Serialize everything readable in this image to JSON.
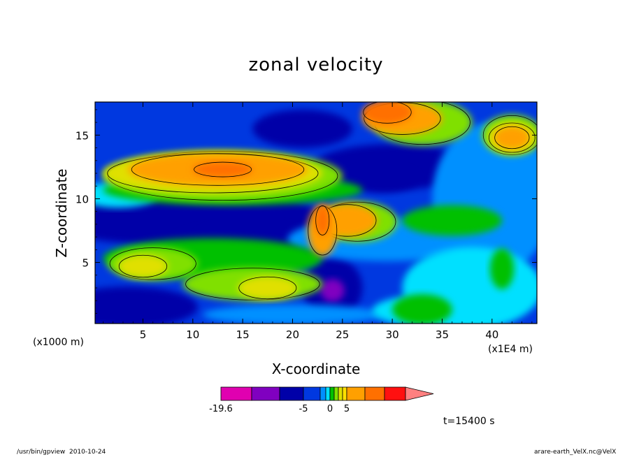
{
  "chart_data": {
    "type": "heatmap",
    "title": "zonal velocity",
    "xlabel": "X-coordinate",
    "ylabel": "Z-coordinate",
    "x_unit_label": "(x1E4 m)",
    "y_unit_label": "(x1000 m)",
    "xlim": [
      0.2,
      44.5
    ],
    "ylim": [
      0.2,
      17.6
    ],
    "x_ticks": [
      5,
      10,
      15,
      20,
      25,
      30,
      35,
      40
    ],
    "y_ticks": [
      5,
      10,
      15
    ],
    "time_label": "t=15400 s",
    "colorbar": {
      "colors": [
        "#e000b0",
        "#8000c0",
        "#0000a8",
        "#0038e0",
        "#0090ff",
        "#00e0ff",
        "#00c000",
        "#80e000",
        "#e0e000",
        "#ffe000",
        "#ffa000",
        "#ff7000",
        "#ff1010",
        "#ff8080"
      ],
      "tick_labels": [
        "-19.6",
        "-5",
        "0",
        "5"
      ],
      "tick_values": [
        -19.6,
        -5,
        0,
        5
      ]
    },
    "regions": [
      {
        "band": 2,
        "x": 3.5,
        "z": 1.5,
        "rx": 7,
        "rz": 1.6
      },
      {
        "band": 2,
        "x": 9,
        "z": 8.5,
        "rx": 14,
        "rz": 2.2
      },
      {
        "band": 2,
        "x": 16,
        "z": 6.5,
        "rx": 8,
        "rz": 1.5
      },
      {
        "band": 2,
        "x": 30,
        "z": 12.5,
        "rx": 8,
        "rz": 1.8
      },
      {
        "band": 2,
        "x": 21,
        "z": 15.5,
        "rx": 5,
        "rz": 1.5
      },
      {
        "band": 1,
        "x": 15.5,
        "z": 7,
        "rx": 5,
        "rz": 1.0
      },
      {
        "band": 1,
        "x": 24,
        "z": 3,
        "rx": 3,
        "rz": 2.4
      },
      {
        "band": 1,
        "x": 29,
        "z": 11.5,
        "rx": 3.5,
        "rz": 1.0
      },
      {
        "band": 0,
        "x": 24,
        "z": 2.8,
        "rx": 1.2,
        "rz": 0.9
      },
      {
        "band": 3,
        "x": 29.5,
        "z": 6.8,
        "rx": 10,
        "rz": 1.7
      },
      {
        "band": 3,
        "x": 40,
        "z": 10,
        "rx": 6,
        "rz": 6
      },
      {
        "band": 3,
        "x": 20,
        "z": 0.9,
        "rx": 9,
        "rz": 0.8
      },
      {
        "band": 4,
        "x": 38,
        "z": 3.0,
        "rx": 7,
        "rz": 3.2
      },
      {
        "band": 4,
        "x": 2.5,
        "z": 10.3,
        "rx": 4,
        "rz": 1.0
      },
      {
        "band": 4,
        "x": 33,
        "z": 1.2,
        "rx": 5,
        "rz": 1.2
      },
      {
        "band": 5,
        "x": 33,
        "z": 1.3,
        "rx": 3,
        "rz": 1.2
      },
      {
        "band": 5,
        "x": 41,
        "z": 4.5,
        "rx": 1.2,
        "rz": 1.6
      },
      {
        "band": 5,
        "x": 12,
        "z": 5.3,
        "rx": 11,
        "rz": 1.6
      },
      {
        "band": 5,
        "x": 14,
        "z": 10.7,
        "rx": 13,
        "rz": 1.2
      },
      {
        "band": 5,
        "x": 36,
        "z": 8.3,
        "rx": 5,
        "rz": 1.2
      },
      {
        "band": 6,
        "x": 6,
        "z": 4.9,
        "rx": 4.5,
        "rz": 1.3
      },
      {
        "band": 6,
        "x": 16,
        "z": 3.3,
        "rx": 7,
        "rz": 1.3
      },
      {
        "band": 6,
        "x": 42,
        "z": 15,
        "rx": 3,
        "rz": 1.6
      },
      {
        "band": 6,
        "x": 33,
        "z": 16,
        "rx": 5,
        "rz": 1.8
      },
      {
        "band": 6,
        "x": 13,
        "z": 11.8,
        "rx": 12,
        "rz": 2.0
      },
      {
        "band": 6,
        "x": 26.5,
        "z": 8.2,
        "rx": 4,
        "rz": 1.6
      },
      {
        "band": 7,
        "x": 5,
        "z": 4.7,
        "rx": 2.5,
        "rz": 0.9
      },
      {
        "band": 7,
        "x": 17.5,
        "z": 3.0,
        "rx": 3,
        "rz": 0.9
      },
      {
        "band": 7,
        "x": 12,
        "z": 12,
        "rx": 11,
        "rz": 1.6
      },
      {
        "band": 7,
        "x": 42,
        "z": 14.8,
        "rx": 2.4,
        "rz": 1.2
      },
      {
        "band": 8,
        "x": 12.5,
        "z": 12.3,
        "rx": 9,
        "rz": 1.3
      },
      {
        "band": 8,
        "x": 25.5,
        "z": 8.3,
        "rx": 3,
        "rz": 1.3
      },
      {
        "band": 8,
        "x": 31,
        "z": 16.3,
        "rx": 4,
        "rz": 1.3
      },
      {
        "band": 8,
        "x": 42,
        "z": 14.8,
        "rx": 1.8,
        "rz": 0.9
      },
      {
        "band": 8,
        "x": 23,
        "z": 7.5,
        "rx": 1.5,
        "rz": 2.0
      },
      {
        "band": 9,
        "x": 13,
        "z": 12.3,
        "rx": 3,
        "rz": 0.6
      },
      {
        "band": 9,
        "x": 23,
        "z": 8.3,
        "rx": 0.7,
        "rz": 1.2
      },
      {
        "band": 9,
        "x": 29.5,
        "z": 16.8,
        "rx": 2.5,
        "rz": 0.9
      }
    ]
  }
}
